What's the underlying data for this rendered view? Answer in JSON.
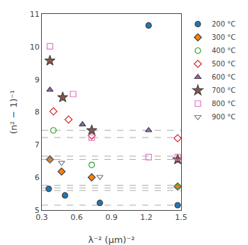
{
  "chart_data": {
    "type": "scatter",
    "xlabel": "λ⁻² (μm)⁻²",
    "ylabel": "(n² − 1)⁻¹",
    "xlim": [
      0.3,
      1.5
    ],
    "ylim": [
      5.0,
      11.0
    ],
    "xticks": [
      0.3,
      0.6,
      0.9,
      1.2,
      1.5
    ],
    "yticks": [
      5,
      6,
      7,
      8,
      9,
      10,
      11
    ],
    "grid": false,
    "legend": "upper right",
    "series": [
      {
        "name": "200 °C",
        "marker": "circle",
        "x": [
          0.36,
          0.5,
          0.8,
          1.22,
          1.47
        ],
        "values": [
          5.65,
          5.45,
          5.22,
          10.65,
          5.15
        ]
      },
      {
        "name": "300 °C",
        "marker": "diamond",
        "x": [
          0.37,
          0.47,
          0.73,
          1.47
        ],
        "values": [
          6.55,
          6.18,
          6.0,
          5.72
        ]
      },
      {
        "name": "400 °C",
        "marker": "circle-open",
        "x": [
          0.4,
          0.73,
          1.47
        ],
        "values": [
          7.44,
          6.38,
          5.72
        ]
      },
      {
        "name": "500 °C",
        "marker": "diamond-open",
        "x": [
          0.4,
          0.53,
          0.73,
          1.47
        ],
        "values": [
          8.02,
          7.77,
          7.28,
          7.2
        ]
      },
      {
        "name": "600 °C",
        "marker": "triangle-up",
        "x": [
          0.37,
          0.65,
          1.22
        ],
        "values": [
          8.68,
          7.62,
          7.44
        ]
      },
      {
        "name": "700 °C",
        "marker": "star",
        "x": [
          0.37,
          0.48,
          0.73,
          1.47
        ],
        "values": [
          9.57,
          8.45,
          7.44,
          6.55
        ]
      },
      {
        "name": "800 °C",
        "marker": "square-open",
        "x": [
          0.37,
          0.57,
          0.73,
          1.22,
          1.47
        ],
        "values": [
          10.01,
          8.55,
          7.22,
          6.62,
          6.62
        ]
      },
      {
        "name": "900 °C",
        "marker": "triangle-down-open",
        "x": [
          0.37,
          0.47,
          0.8,
          1.47
        ],
        "values": [
          6.53,
          6.45,
          6.02,
          5.72
        ]
      }
    ],
    "hlines": {
      "values": [
        5.15,
        5.6,
        5.68,
        5.76,
        6.55,
        6.65,
        7.22,
        7.44
      ],
      "color": "#aaaaaa",
      "line_style": "dash"
    }
  }
}
